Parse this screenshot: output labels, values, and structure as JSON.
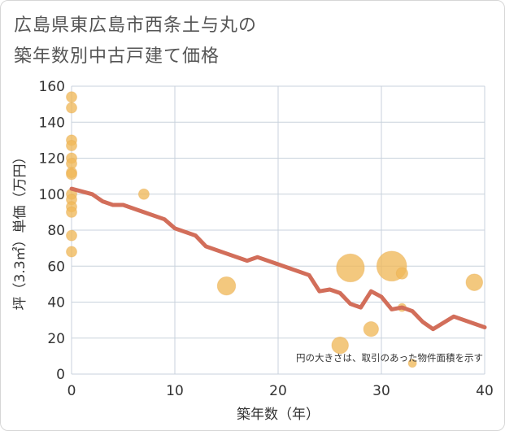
{
  "chart_data": {
    "type": "scatter",
    "title_lines": [
      "広島県東広島市西条土与丸の",
      "築年数別中古戸建て価格"
    ],
    "xlabel": "築年数（年）",
    "ylabel": "坪（3.3㎡）単価（万円）",
    "xlim": [
      0,
      40
    ],
    "ylim": [
      0,
      160
    ],
    "x_ticks": [
      0,
      10,
      20,
      30,
      40
    ],
    "y_ticks": [
      0,
      20,
      40,
      60,
      80,
      100,
      120,
      140,
      160
    ],
    "grid": true,
    "note": "円の大きさは、取引のあった物件面積を示す",
    "colors": {
      "bubble": "#f0b95a",
      "trend": "#d26e5a",
      "grid": "#c8d2dc"
    },
    "points": [
      {
        "x": 0,
        "y": 154,
        "size": 1
      },
      {
        "x": 0,
        "y": 148,
        "size": 1
      },
      {
        "x": 0,
        "y": 130,
        "size": 1
      },
      {
        "x": 0,
        "y": 127,
        "size": 1
      },
      {
        "x": 0,
        "y": 120,
        "size": 1
      },
      {
        "x": 0,
        "y": 117,
        "size": 1
      },
      {
        "x": 0,
        "y": 112,
        "size": 1
      },
      {
        "x": 0,
        "y": 111,
        "size": 1
      },
      {
        "x": 0,
        "y": 100,
        "size": 1
      },
      {
        "x": 0,
        "y": 97,
        "size": 1
      },
      {
        "x": 0,
        "y": 93,
        "size": 1
      },
      {
        "x": 0,
        "y": 90,
        "size": 1
      },
      {
        "x": 0,
        "y": 77,
        "size": 1
      },
      {
        "x": 0,
        "y": 68,
        "size": 1
      },
      {
        "x": 7,
        "y": 100,
        "size": 1
      },
      {
        "x": 15,
        "y": 49,
        "size": 3
      },
      {
        "x": 26,
        "y": 16,
        "size": 2.5
      },
      {
        "x": 27,
        "y": 59,
        "size": 7
      },
      {
        "x": 29,
        "y": 25,
        "size": 2
      },
      {
        "x": 31,
        "y": 60,
        "size": 8
      },
      {
        "x": 32,
        "y": 56,
        "size": 1.2
      },
      {
        "x": 32,
        "y": 37,
        "size": 0.6
      },
      {
        "x": 33,
        "y": 6,
        "size": 0.6
      },
      {
        "x": 39,
        "y": 51,
        "size": 2.5
      }
    ],
    "trend": {
      "x": [
        0,
        2,
        3,
        4,
        5,
        7,
        9,
        10,
        12,
        13,
        15,
        17,
        18,
        20,
        23,
        24,
        25,
        26,
        27,
        28,
        29,
        30,
        31,
        32,
        33,
        34,
        35,
        37,
        40
      ],
      "y": [
        103,
        100,
        96,
        94,
        94,
        90,
        86,
        81,
        77,
        71,
        67,
        63,
        65,
        61,
        55,
        46,
        47,
        45,
        39,
        37,
        46,
        43,
        36,
        37,
        35,
        29,
        25,
        32,
        26
      ]
    }
  }
}
